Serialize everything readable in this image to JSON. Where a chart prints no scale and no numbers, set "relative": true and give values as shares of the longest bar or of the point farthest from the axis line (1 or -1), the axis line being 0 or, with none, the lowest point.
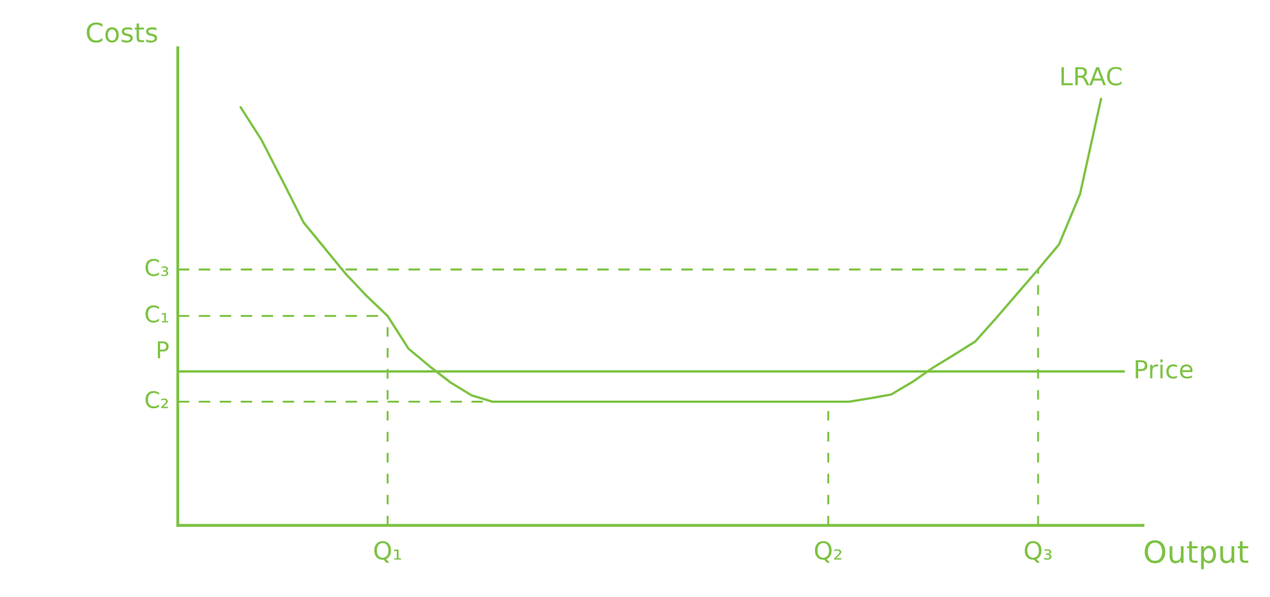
{
  "chart_data": {
    "type": "line",
    "relative": true,
    "xlabel": "Output",
    "ylabel": "Costs",
    "categories": [
      null,
      null,
      null,
      null,
      null,
      null,
      null,
      null,
      null,
      null,
      "Q₁",
      null,
      null,
      null,
      null,
      null,
      null,
      null,
      null,
      null,
      null,
      null,
      null,
      null,
      null,
      null,
      null,
      null,
      null,
      null,
      null,
      "Q₂",
      null,
      null,
      null,
      null,
      null,
      null,
      null,
      null,
      null,
      "Q₃",
      null,
      null,
      null,
      null,
      null
    ],
    "series": [
      {
        "name": "LRAC",
        "color": "#7cc242",
        "values": [
          null,
          null,
          null,
          0.98,
          0.903,
          0.807,
          0.71,
          0.65,
          0.59,
          0.538,
          0.491,
          0.414,
          0.373,
          0.335,
          0.305,
          0.29,
          0.29,
          0.29,
          0.29,
          0.29,
          0.29,
          0.29,
          0.29,
          0.29,
          0.29,
          0.29,
          0.29,
          0.29,
          0.29,
          0.29,
          0.29,
          0.29,
          0.29,
          0.298,
          0.307,
          0.336,
          0.37,
          0.4,
          0.431,
          0.486,
          0.543,
          0.6,
          0.659,
          0.777,
          1.0,
          null,
          null
        ]
      }
    ],
    "ref_lines": [
      {
        "axis": "y",
        "value": 0.6,
        "label": "C₃",
        "line_style": "dashed",
        "color": "#7cc242"
      },
      {
        "axis": "y",
        "value": 0.491,
        "label": "C₁",
        "line_style": "dashed",
        "color": "#7cc242"
      },
      {
        "axis": "y",
        "value": 0.361,
        "label": "Price",
        "line_style": "solid",
        "color": "#7cc242"
      },
      {
        "axis": "y",
        "value": 0.29,
        "label": "C₂",
        "line_style": "dashed",
        "color": "#7cc242"
      },
      {
        "axis": "x",
        "value": "Q₁",
        "line_style": "dashed",
        "color": "#7cc242"
      },
      {
        "axis": "x",
        "value": "Q₂",
        "line_style": "dashed",
        "color": "#7cc242"
      },
      {
        "axis": "x",
        "value": "Q₃",
        "line_style": "dashed",
        "color": "#7cc242"
      }
    ],
    "annotations": [
      "P"
    ],
    "marker": "none",
    "line_style": "solid",
    "grid": false,
    "legend": false
  }
}
